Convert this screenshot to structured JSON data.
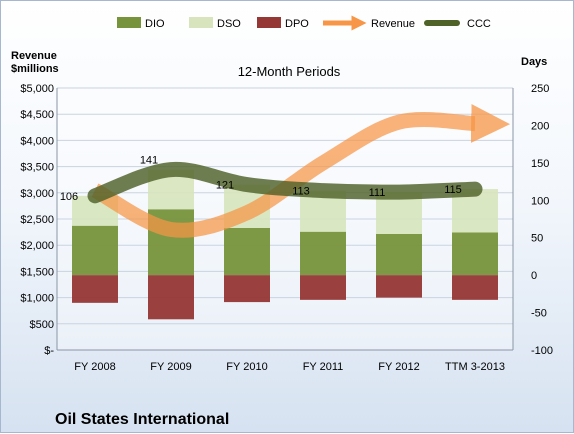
{
  "chart_data": {
    "type": "bar",
    "title": "12-Month Periods",
    "left_axis_title": [
      "Revenue",
      "$millions"
    ],
    "right_axis_title": "Days",
    "categories": [
      "FY 2008",
      "FY 2009",
      "FY 2010",
      "FY 2011",
      "FY 2012",
      "TTM 3-2013"
    ],
    "left_axis": {
      "min": 0,
      "max": 5000,
      "step": 500,
      "tick_labels": [
        "$-",
        "$500",
        "$1,000",
        "$1,500",
        "$2,000",
        "$2,500",
        "$3,000",
        "$3,500",
        "$4,000",
        "$4,500",
        "$5,000"
      ]
    },
    "right_axis": {
      "min": -100,
      "max": 250,
      "step": 50,
      "tick_labels": [
        "-100",
        "-50",
        "0",
        "50",
        "100",
        "150",
        "200",
        "250"
      ]
    },
    "series": [
      {
        "name": "DIO",
        "axis": "days",
        "kind": "stacked-bar",
        "color": "#77933c",
        "values": [
          66,
          88,
          63,
          58,
          55,
          57
        ]
      },
      {
        "name": "DSO",
        "axis": "days",
        "kind": "stacked-bar",
        "color": "#d7e4bd",
        "values": [
          40,
          53,
          58,
          55,
          56,
          58
        ]
      },
      {
        "name": "DPO",
        "axis": "days",
        "kind": "negative-bar",
        "color": "#953735",
        "values": [
          -37,
          -59,
          -36,
          -33,
          -30,
          -33
        ]
      },
      {
        "name": "Revenue",
        "axis": "revenue",
        "kind": "smooth-arrow-line",
        "color": "#f79646",
        "values": [
          3050,
          2300,
          2620,
          3570,
          4350,
          4320
        ]
      },
      {
        "name": "CCC",
        "axis": "days",
        "kind": "smooth-line",
        "color": "#4f6228",
        "values": [
          106,
          141,
          121,
          113,
          111,
          115
        ]
      }
    ],
    "data_labels": [
      "106",
      "141",
      "121",
      "113",
      "111",
      "115"
    ],
    "legend": {
      "position": "top",
      "entries": [
        "DIO",
        "DSO",
        "DPO",
        "Revenue",
        "CCC"
      ]
    },
    "footer": "Oil States International"
  }
}
